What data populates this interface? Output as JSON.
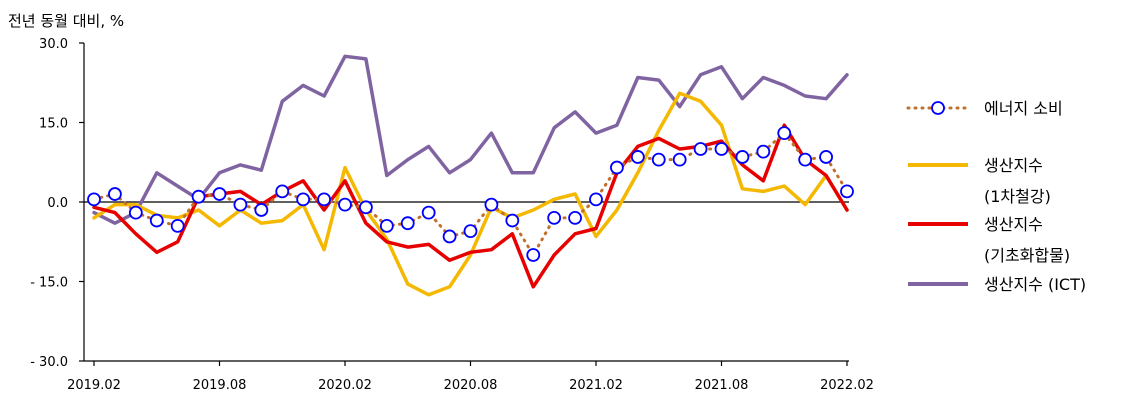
{
  "chart_data": {
    "type": "line",
    "ylabel": "전년 동월 대비, %",
    "ylim": [
      -30,
      30
    ],
    "yticks": [
      {
        "value": 30,
        "label": "30.0"
      },
      {
        "value": 15,
        "label": "15.0"
      },
      {
        "value": 0,
        "label": "0.0"
      },
      {
        "value": -15,
        "label": "- 15.0"
      },
      {
        "value": -30,
        "label": "- 30.0"
      }
    ],
    "x_count": 37,
    "xticks": [
      {
        "index": 0,
        "label": "2019.02"
      },
      {
        "index": 6,
        "label": "2019.08"
      },
      {
        "index": 12,
        "label": "2020.02"
      },
      {
        "index": 18,
        "label": "2020.08"
      },
      {
        "index": 24,
        "label": "2021.02"
      },
      {
        "index": 30,
        "label": "2021.08"
      },
      {
        "index": 36,
        "label": "2022.02"
      }
    ],
    "legend_position": "right",
    "series": [
      {
        "name": "에너지 소비",
        "color": "#c0702a",
        "marker_color": "#0000ff",
        "style": "dotted-with-circles",
        "values": [
          0.5,
          1.5,
          -2.0,
          -3.5,
          -4.5,
          1.0,
          1.5,
          -0.5,
          -1.5,
          2.0,
          0.5,
          0.5,
          -0.5,
          -1.0,
          -4.5,
          -4.0,
          -2.0,
          -6.5,
          -5.5,
          -0.5,
          -3.5,
          -10.0,
          -3.0,
          -3.0,
          0.5,
          6.5,
          8.5,
          8.0,
          8.0,
          10.0,
          10.0,
          8.5,
          9.5,
          13.0,
          8.0,
          8.5,
          2.0
        ]
      },
      {
        "name": "생산지수 (1차철강)",
        "legend_lines": [
          "생산지수",
          "(1차철강)"
        ],
        "color": "#f5b800",
        "style": "solid",
        "values": [
          -3.0,
          -0.5,
          -0.5,
          -2.5,
          -3.0,
          -1.5,
          -4.5,
          -1.5,
          -4.0,
          -3.5,
          -0.5,
          -9.0,
          6.5,
          -1.5,
          -7.0,
          -15.5,
          -17.5,
          -16.0,
          -10.0,
          -1.0,
          -3.0,
          -1.5,
          0.5,
          1.5,
          -6.5,
          -1.5,
          5.5,
          13.5,
          20.5,
          19.0,
          14.5,
          2.5,
          2.0,
          3.0,
          -0.5,
          5.0,
          -1.5
        ]
      },
      {
        "name": "생산지수 (기초화합물)",
        "legend_lines": [
          "생산지수",
          "(기초화합물)"
        ],
        "color": "#e60000",
        "style": "solid",
        "values": [
          -1.0,
          -2.0,
          -6.0,
          -9.5,
          -7.5,
          1.0,
          1.5,
          2.0,
          -0.5,
          2.0,
          4.0,
          -1.5,
          4.0,
          -4.0,
          -7.5,
          -8.5,
          -8.0,
          -11.0,
          -9.5,
          -9.0,
          -6.0,
          -16.0,
          -10.0,
          -6.0,
          -5.0,
          5.5,
          10.5,
          12.0,
          10.0,
          10.5,
          11.5,
          7.0,
          4.0,
          14.5,
          8.0,
          5.0,
          -1.5
        ]
      },
      {
        "name": "생산지수 (ICT)",
        "legend_lines": [
          "생산지수 (ICT)"
        ],
        "color": "#8064a2",
        "style": "solid",
        "values": [
          -2.0,
          -4.0,
          -2.0,
          5.5,
          3.0,
          0.5,
          5.5,
          7.0,
          6.0,
          19.0,
          22.0,
          20.0,
          27.5,
          27.0,
          5.0,
          8.0,
          10.5,
          5.5,
          8.0,
          13.0,
          5.5,
          5.5,
          14.0,
          17.0,
          13.0,
          14.5,
          23.5,
          23.0,
          18.0,
          24.0,
          25.5,
          19.5,
          23.5,
          22.0,
          20.0,
          19.5,
          24.0
        ]
      }
    ]
  }
}
